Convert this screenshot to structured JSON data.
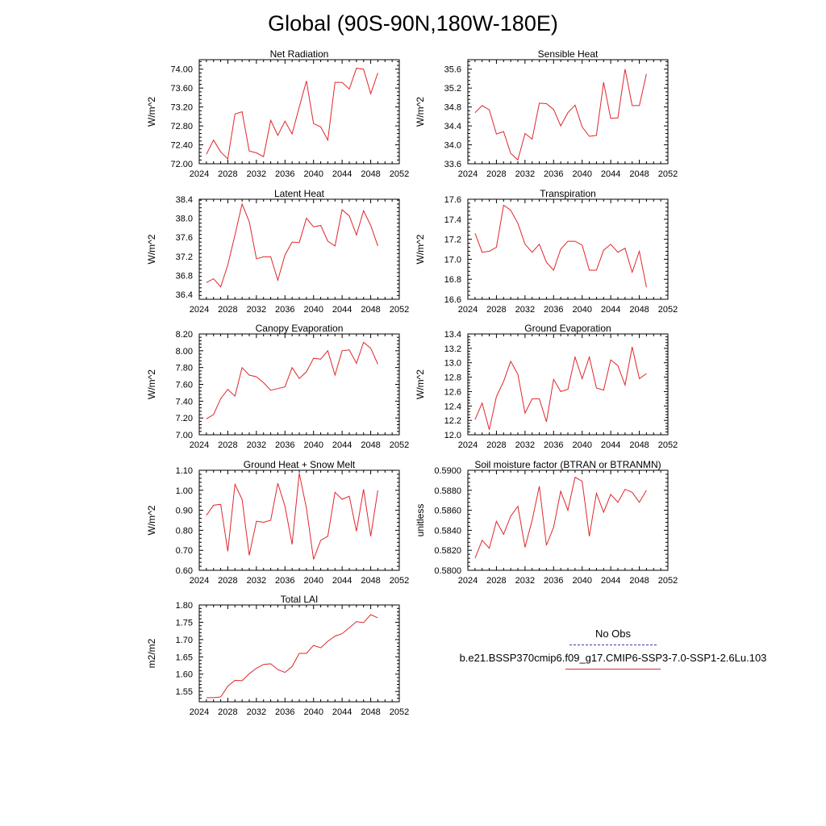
{
  "page": {
    "title": "Global (90S-90N,180W-180E)"
  },
  "legend": {
    "obs_label": "No Obs",
    "model_label": "b.e21.BSSP370cmip6.f09_g17.CMIP6-SSP3-7.0-SSP1-2.6Lu.103",
    "obs_color": "#3b3fa6",
    "model_color": "#e0262b"
  },
  "chart_data": [
    {
      "type": "line",
      "title": "Net Radiation",
      "ylabel": "W/m^2",
      "xlim": [
        2024,
        2052
      ],
      "ylim": [
        72.0,
        74.2
      ],
      "xticks": [
        "2024",
        "2028",
        "2032",
        "2036",
        "2040",
        "2044",
        "2048",
        "2052"
      ],
      "yticks": [
        "72.00",
        "72.40",
        "72.80",
        "73.20",
        "73.60",
        "74.00"
      ],
      "x": [
        2025,
        2026,
        2027,
        2028,
        2029,
        2030,
        2031,
        2032,
        2033,
        2034,
        2035,
        2036,
        2037,
        2038,
        2039,
        2040,
        2041,
        2042,
        2043,
        2044,
        2045,
        2046,
        2047,
        2048,
        2049
      ],
      "series": [
        {
          "values": [
            72.2,
            72.5,
            72.25,
            72.1,
            73.05,
            73.1,
            72.27,
            72.23,
            72.15,
            72.92,
            72.6,
            72.9,
            72.63,
            73.2,
            73.75,
            72.85,
            72.78,
            72.5,
            73.72,
            73.72,
            73.58,
            74.02,
            74.0,
            73.48,
            73.92
          ]
        }
      ]
    },
    {
      "type": "line",
      "title": "Sensible Heat",
      "ylabel": "W/m^2",
      "xlim": [
        2024,
        2052
      ],
      "ylim": [
        33.6,
        35.8
      ],
      "xticks": [
        "2024",
        "2028",
        "2032",
        "2036",
        "2040",
        "2044",
        "2048",
        "2052"
      ],
      "yticks": [
        "33.6",
        "34.0",
        "34.4",
        "34.8",
        "35.2",
        "35.6"
      ],
      "x": [
        2025,
        2026,
        2027,
        2028,
        2029,
        2030,
        2031,
        2032,
        2033,
        2034,
        2035,
        2036,
        2037,
        2038,
        2039,
        2040,
        2041,
        2042,
        2043,
        2044,
        2045,
        2046,
        2047,
        2048,
        2049
      ],
      "series": [
        {
          "values": [
            34.68,
            34.83,
            34.74,
            34.23,
            34.28,
            33.82,
            33.68,
            34.24,
            34.12,
            34.88,
            34.87,
            34.75,
            34.4,
            34.68,
            34.84,
            34.38,
            34.18,
            34.2,
            35.32,
            34.56,
            34.57,
            35.6,
            34.83,
            34.83,
            35.5
          ]
        }
      ]
    },
    {
      "type": "line",
      "title": "Latent Heat",
      "ylabel": "W/m^2",
      "xlim": [
        2024,
        2052
      ],
      "ylim": [
        36.3,
        38.4
      ],
      "xticks": [
        "2024",
        "2028",
        "2032",
        "2036",
        "2040",
        "2044",
        "2048",
        "2052"
      ],
      "yticks": [
        "36.4",
        "36.8",
        "37.2",
        "37.6",
        "38.0",
        "38.4"
      ],
      "x": [
        2025,
        2026,
        2027,
        2028,
        2029,
        2030,
        2031,
        2032,
        2033,
        2034,
        2035,
        2036,
        2037,
        2038,
        2039,
        2040,
        2041,
        2042,
        2043,
        2044,
        2045,
        2046,
        2047,
        2048,
        2049
      ],
      "series": [
        {
          "values": [
            36.65,
            36.73,
            36.56,
            37.02,
            37.65,
            38.3,
            37.93,
            37.15,
            37.19,
            37.19,
            36.7,
            37.23,
            37.5,
            37.49,
            38.0,
            37.82,
            37.85,
            37.52,
            37.42,
            38.18,
            38.05,
            37.65,
            38.16,
            37.85,
            37.42
          ]
        }
      ]
    },
    {
      "type": "line",
      "title": "Transpiration",
      "ylabel": "W/m^2",
      "xlim": [
        2024,
        2052
      ],
      "ylim": [
        16.6,
        17.6
      ],
      "xticks": [
        "2024",
        "2028",
        "2032",
        "2036",
        "2040",
        "2044",
        "2048",
        "2052"
      ],
      "yticks": [
        "16.6",
        "16.8",
        "17.0",
        "17.2",
        "17.4",
        "17.6"
      ],
      "x": [
        2025,
        2026,
        2027,
        2028,
        2029,
        2030,
        2031,
        2032,
        2033,
        2034,
        2035,
        2036,
        2037,
        2038,
        2039,
        2040,
        2041,
        2042,
        2043,
        2044,
        2045,
        2046,
        2047,
        2048,
        2049
      ],
      "series": [
        {
          "values": [
            17.26,
            17.07,
            17.08,
            17.12,
            17.54,
            17.49,
            17.36,
            17.15,
            17.07,
            17.15,
            16.97,
            16.89,
            17.1,
            17.18,
            17.18,
            17.14,
            16.89,
            16.89,
            17.09,
            17.15,
            17.07,
            17.11,
            16.87,
            17.08,
            16.72
          ]
        }
      ]
    },
    {
      "type": "line",
      "title": "Canopy Evaporation",
      "ylabel": "W/m^2",
      "xlim": [
        2024,
        2052
      ],
      "ylim": [
        7.0,
        8.2
      ],
      "xticks": [
        "2024",
        "2028",
        "2032",
        "2036",
        "2040",
        "2044",
        "2048",
        "2052"
      ],
      "yticks": [
        "7.00",
        "7.20",
        "7.40",
        "7.60",
        "7.80",
        "8.00",
        "8.20"
      ],
      "x": [
        2025,
        2026,
        2027,
        2028,
        2029,
        2030,
        2031,
        2032,
        2033,
        2034,
        2035,
        2036,
        2037,
        2038,
        2039,
        2040,
        2041,
        2042,
        2043,
        2044,
        2045,
        2046,
        2047,
        2048,
        2049
      ],
      "series": [
        {
          "values": [
            7.19,
            7.24,
            7.43,
            7.54,
            7.46,
            7.8,
            7.71,
            7.69,
            7.62,
            7.53,
            7.55,
            7.57,
            7.8,
            7.67,
            7.75,
            7.91,
            7.9,
            8.0,
            7.71,
            8.0,
            8.01,
            7.85,
            8.1,
            8.03,
            7.84
          ]
        }
      ]
    },
    {
      "type": "line",
      "title": "Ground Evaporation",
      "ylabel": "W/m^2",
      "xlim": [
        2024,
        2052
      ],
      "ylim": [
        12.0,
        13.4
      ],
      "xticks": [
        "2024",
        "2028",
        "2032",
        "2036",
        "2040",
        "2044",
        "2048",
        "2052"
      ],
      "yticks": [
        "12.0",
        "12.2",
        "12.4",
        "12.6",
        "12.8",
        "13.0",
        "13.2",
        "13.4"
      ],
      "x": [
        2025,
        2026,
        2027,
        2028,
        2029,
        2030,
        2031,
        2032,
        2033,
        2034,
        2035,
        2036,
        2037,
        2038,
        2039,
        2040,
        2041,
        2042,
        2043,
        2044,
        2045,
        2046,
        2047,
        2048,
        2049
      ],
      "series": [
        {
          "values": [
            12.21,
            12.44,
            12.07,
            12.53,
            12.74,
            13.02,
            12.84,
            12.3,
            12.5,
            12.5,
            12.18,
            12.77,
            12.6,
            12.63,
            13.08,
            12.78,
            13.08,
            12.65,
            12.62,
            13.04,
            12.96,
            12.69,
            13.22,
            12.78,
            12.85
          ]
        }
      ]
    },
    {
      "type": "line",
      "title": "Ground Heat + Snow Melt",
      "ylabel": "W/m^2",
      "xlim": [
        2024,
        2052
      ],
      "ylim": [
        0.6,
        1.1
      ],
      "xticks": [
        "2024",
        "2028",
        "2032",
        "2036",
        "2040",
        "2044",
        "2048",
        "2052"
      ],
      "yticks": [
        "0.60",
        "0.70",
        "0.80",
        "0.90",
        "1.00",
        "1.10"
      ],
      "x": [
        2025,
        2026,
        2027,
        2028,
        2029,
        2030,
        2031,
        2032,
        2033,
        2034,
        2035,
        2036,
        2037,
        2038,
        2039,
        2040,
        2041,
        2042,
        2043,
        2044,
        2045,
        2046,
        2047,
        2048,
        2049
      ],
      "series": [
        {
          "values": [
            0.875,
            0.925,
            0.93,
            0.695,
            1.03,
            0.955,
            0.675,
            0.845,
            0.84,
            0.85,
            1.035,
            0.92,
            0.73,
            1.085,
            0.91,
            0.655,
            0.75,
            0.77,
            0.99,
            0.955,
            0.97,
            0.795,
            1.005,
            0.77,
            1.0
          ]
        }
      ]
    },
    {
      "type": "line",
      "title": "Soil moisture factor (BTRAN or BTRANMN)",
      "ylabel": "unitless",
      "xlim": [
        2024,
        2052
      ],
      "ylim": [
        0.58,
        0.59
      ],
      "xticks": [
        "2024",
        "2028",
        "2032",
        "2036",
        "2040",
        "2044",
        "2048",
        "2052"
      ],
      "yticks": [
        "0.5800",
        "0.5820",
        "0.5840",
        "0.5860",
        "0.5880",
        "0.5900"
      ],
      "x": [
        2025,
        2026,
        2027,
        2028,
        2029,
        2030,
        2031,
        2032,
        2033,
        2034,
        2035,
        2036,
        2037,
        2038,
        2039,
        2040,
        2041,
        2042,
        2043,
        2044,
        2045,
        2046,
        2047,
        2048,
        2049
      ],
      "series": [
        {
          "values": [
            0.5812,
            0.583,
            0.5822,
            0.5849,
            0.5836,
            0.5854,
            0.5864,
            0.5823,
            0.585,
            0.5884,
            0.5825,
            0.5843,
            0.5879,
            0.586,
            0.5893,
            0.5889,
            0.5834,
            0.5877,
            0.5858,
            0.5876,
            0.5868,
            0.5881,
            0.5878,
            0.5868,
            0.588
          ]
        }
      ]
    },
    {
      "type": "line",
      "title": "Total LAI",
      "ylabel": "m2/m2",
      "xlim": [
        2024,
        2052
      ],
      "ylim": [
        1.52,
        1.8
      ],
      "xticks": [
        "2024",
        "2028",
        "2032",
        "2036",
        "2040",
        "2044",
        "2048",
        "2052"
      ],
      "yticks": [
        "1.55",
        "1.60",
        "1.65",
        "1.70",
        "1.75",
        "1.80"
      ],
      "x": [
        2025,
        2026,
        2027,
        2028,
        2029,
        2030,
        2031,
        2032,
        2033,
        2034,
        2035,
        2036,
        2037,
        2038,
        2039,
        2040,
        2041,
        2042,
        2043,
        2044,
        2045,
        2046,
        2047,
        2048,
        2049
      ],
      "series": [
        {
          "values": [
            1.532,
            1.532,
            1.534,
            1.565,
            1.582,
            1.581,
            1.601,
            1.617,
            1.628,
            1.63,
            1.613,
            1.605,
            1.622,
            1.66,
            1.66,
            1.683,
            1.676,
            1.695,
            1.71,
            1.717,
            1.734,
            1.752,
            1.749,
            1.772,
            1.763
          ]
        }
      ]
    }
  ]
}
